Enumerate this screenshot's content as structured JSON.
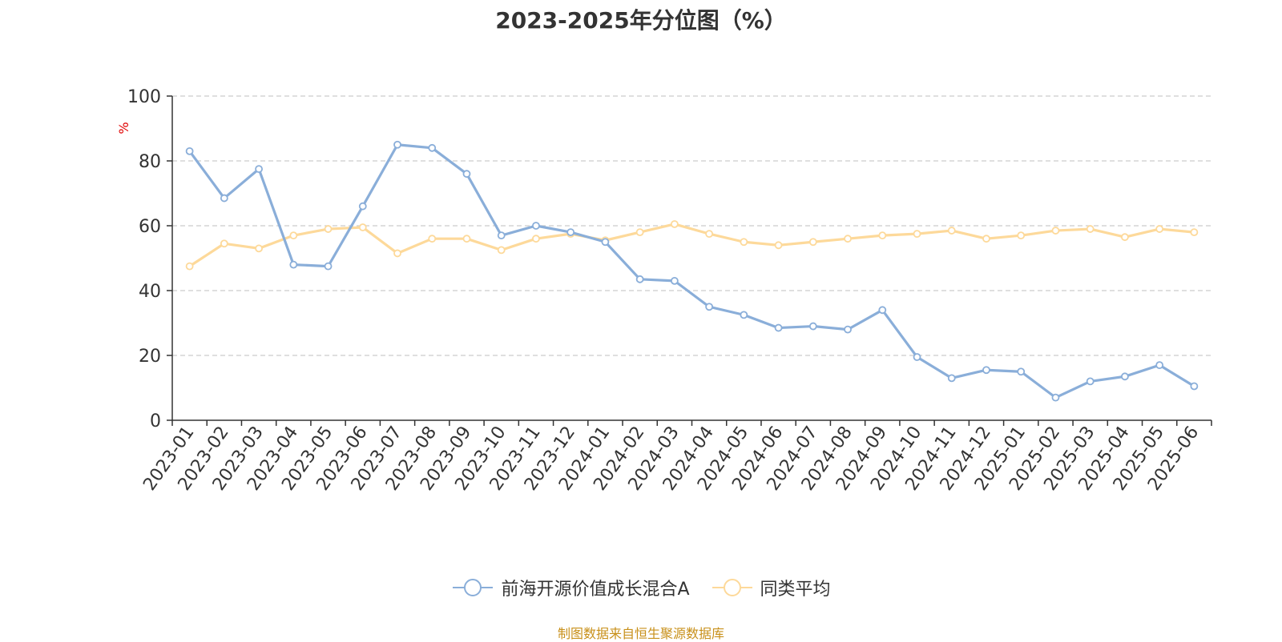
{
  "title": "2023-2025年分位图（%）",
  "y_unit_label": "%",
  "source_note": "制图数据来自恒生聚源数据库",
  "colors": {
    "series_a": "#8aaed9",
    "series_b": "#fdd99a",
    "axis": "#333333",
    "grid": "#cccccc",
    "unit": "#e00000",
    "source": "#c8901a"
  },
  "chart_data": {
    "type": "line",
    "title": "2023-2025年分位图（%）",
    "ylabel": "%",
    "ylim": [
      0,
      100
    ],
    "yticks": [
      0,
      20,
      40,
      60,
      80,
      100
    ],
    "grid": true,
    "legend_position": "bottom",
    "categories": [
      "2023-01",
      "2023-02",
      "2023-03",
      "2023-04",
      "2023-05",
      "2023-06",
      "2023-07",
      "2023-08",
      "2023-09",
      "2023-10",
      "2023-11",
      "2023-12",
      "2024-01",
      "2024-02",
      "2024-03",
      "2024-04",
      "2024-05",
      "2024-06",
      "2024-07",
      "2024-08",
      "2024-09",
      "2024-10",
      "2024-11",
      "2024-12",
      "2025-01",
      "2025-02",
      "2025-03",
      "2025-04",
      "2025-05",
      "2025-06"
    ],
    "series": [
      {
        "name": "前海开源价值成长混合A",
        "values": [
          83,
          68.5,
          77.5,
          48,
          47.5,
          66,
          85,
          84,
          76,
          57,
          60,
          58,
          55,
          43.5,
          43,
          35,
          32.5,
          28.5,
          29,
          28,
          34,
          19.5,
          13,
          15.5,
          15,
          7,
          12,
          13.5,
          17,
          10.5
        ]
      },
      {
        "name": "同类平均",
        "values": [
          47.5,
          54.5,
          53,
          57,
          59,
          59.5,
          51.5,
          56,
          56,
          52.5,
          56,
          57.5,
          55.5,
          58,
          60.5,
          57.5,
          55,
          54,
          55,
          56,
          57,
          57.5,
          58.5,
          56,
          57,
          58.5,
          59,
          56.5,
          59,
          58
        ]
      }
    ]
  }
}
